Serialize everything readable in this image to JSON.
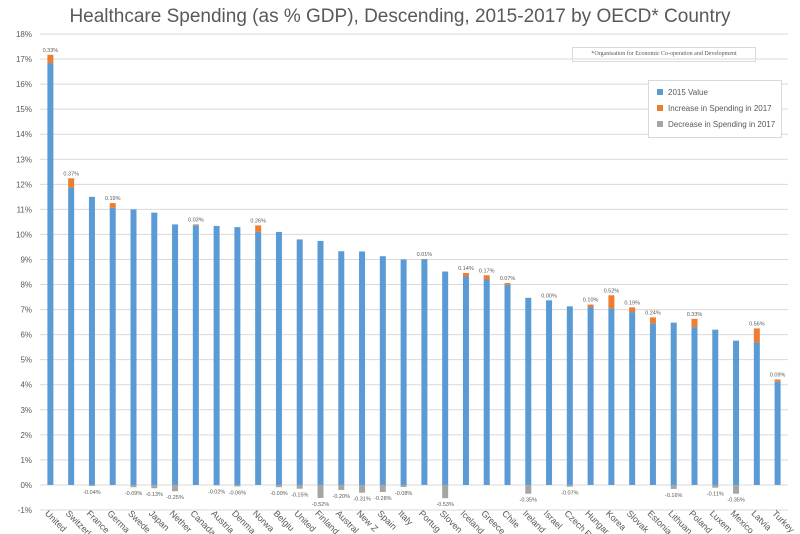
{
  "chart_data": {
    "type": "bar",
    "stacked": true,
    "title": "Healthcare Spending (as % GDP), Descending, 2015-2017 by OECD* Country",
    "note": "*Organisation for Economic Co-operation and Development",
    "categories": [
      "United States",
      "Switzerland",
      "France",
      "Germany",
      "Sweden",
      "Japan",
      "Netherlands",
      "Canada",
      "Austria",
      "Denmark",
      "Norway",
      "Belgium",
      "United Kingdom",
      "Finland",
      "Australia",
      "New Zealand",
      "Spain",
      "Italy",
      "Portugal",
      "Slovenia",
      "Iceland",
      "Greece",
      "Chile",
      "Ireland",
      "Israel",
      "Czech Republic",
      "Hungary",
      "Korea",
      "Slovak Republic",
      "Estonia",
      "Lithuania",
      "Poland",
      "Luxembourg",
      "Mexico",
      "Latvia",
      "Turkey"
    ],
    "tick_labels": [
      "United",
      "Switzerl",
      "France",
      "Germa",
      "Swede",
      "Japan",
      "Nether",
      "Canada",
      "Austria",
      "Denma",
      "Norwa",
      "Belgiu",
      "United",
      "Finland",
      "Austral",
      "New Z",
      "Spain",
      "Italy",
      "Portug",
      "Sloven",
      "Iceland",
      "Greece",
      "Chile",
      "Ireland",
      "Israel",
      "Czech R",
      "Hungar",
      "Korea",
      "Slovak",
      "Estonia",
      "Lithuan",
      "Poland",
      "Luxem",
      "Mexico",
      "Latvia",
      "Turkey"
    ],
    "series": [
      {
        "name": "2015 Value",
        "values": [
          16.84,
          11.87,
          11.5,
          11.06,
          11.0,
          10.87,
          10.4,
          10.37,
          10.34,
          10.29,
          10.1,
          10.1,
          9.8,
          9.74,
          9.33,
          9.32,
          9.13,
          9.0,
          9.01,
          8.52,
          8.32,
          8.2,
          7.99,
          7.47,
          7.37,
          7.13,
          7.1,
          7.05,
          6.9,
          6.45,
          6.48,
          6.3,
          6.2,
          5.76,
          5.69,
          4.12
        ]
      },
      {
        "name": "Increase in Spending in 2017",
        "values": [
          0.33,
          0.37,
          0,
          0.19,
          0,
          0,
          0,
          0.03,
          0,
          0,
          0.26,
          0,
          0,
          0,
          0,
          0,
          0,
          0,
          0.01,
          0,
          0.14,
          0.17,
          0.07,
          0,
          0.0,
          0,
          0.1,
          0.52,
          0.19,
          0.24,
          0,
          0.33,
          0,
          0,
          0.56,
          0.09
        ]
      },
      {
        "name": "Decrease in Spending in 2017",
        "values": [
          0,
          0,
          -0.04,
          0,
          -0.09,
          -0.13,
          -0.25,
          0,
          -0.02,
          -0.06,
          0,
          -0.09,
          -0.15,
          -0.52,
          -0.2,
          -0.31,
          -0.28,
          -0.08,
          0,
          -0.53,
          0,
          0,
          0,
          -0.35,
          0,
          -0.07,
          0,
          0,
          0,
          0,
          -0.16,
          0,
          -0.11,
          -0.35,
          0,
          0
        ]
      }
    ],
    "data_labels": [
      "0.33%",
      "0.37%",
      "-0.04%",
      "0.19%",
      "-0.09%",
      "-0.13%",
      "-0.25%",
      "0.03%",
      "-0.02%",
      "-0.06%",
      "0.26%",
      "-0.09%",
      "-0.15%",
      "-0.52%",
      "-0.20%",
      "-0.31%",
      "-0.28%",
      "-0.08%",
      "0.01%",
      "-0.53%",
      "0.14%",
      "0.17%",
      "0.07%",
      "-0.35%",
      "0.00%",
      "-0.07%",
      "0.10%",
      "0.52%",
      "0.19%",
      "0.24%",
      "-0.16%",
      "0.33%",
      "-0.11%",
      "-0.35%",
      "0.56%",
      "0.09%"
    ],
    "ylim": [
      -1,
      18
    ],
    "y_ticks": [
      "-1%",
      "0%",
      "1%",
      "2%",
      "3%",
      "4%",
      "5%",
      "6%",
      "7%",
      "8%",
      "9%",
      "10%",
      "11%",
      "12%",
      "13%",
      "14%",
      "15%",
      "16%",
      "17%",
      "18%"
    ],
    "grid": true,
    "legend_position": "top-right",
    "colors": {
      "base": "#5b9bd5",
      "increase": "#ed7d31",
      "decrease": "#a5a5a5",
      "grid": "#d9d9d9",
      "text": "#595959"
    }
  }
}
